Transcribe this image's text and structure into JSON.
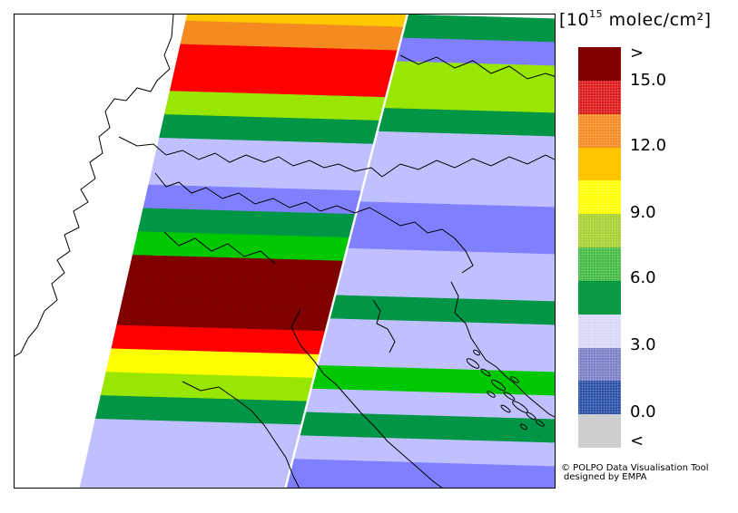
{
  "legend": {
    "title_open": "[10",
    "title_sup": "15",
    "title_close": " molec/cm²]",
    "swatches": [
      {
        "color": "#800000",
        "pattern": "solid"
      },
      {
        "color": "#dd1a1a",
        "pattern": "dots"
      },
      {
        "color": "#f58a20",
        "pattern": "dots"
      },
      {
        "color": "#ffc400",
        "pattern": "solid"
      },
      {
        "color": "#ffff00",
        "pattern": "dots"
      },
      {
        "color": "#a8d030",
        "pattern": "dots"
      },
      {
        "color": "#44bb44",
        "pattern": "dots"
      },
      {
        "color": "#0a9a45",
        "pattern": "solid"
      },
      {
        "color": "#d8d8f6",
        "pattern": "dots"
      },
      {
        "color": "#7b80c6",
        "pattern": "dots"
      },
      {
        "color": "#2a50a8",
        "pattern": "dots"
      },
      {
        "color": "#cfcfcf",
        "pattern": "solid"
      }
    ],
    "labels": [
      ">",
      "15.0",
      "12.0",
      "9.0",
      "6.0",
      "3.0",
      "0.0",
      "<"
    ]
  },
  "map": {
    "colors": {
      "darkred": "#800000",
      "red": "#ff0000",
      "orange": "#f58a20",
      "gold": "#ffc800",
      "yellow": "#ffff00",
      "yellowgreen": "#99e600",
      "green": "#00c800",
      "darkgreen": "#009646",
      "lavender": "#c0c0ff",
      "periwinkle": "#8080ff",
      "boundary": "#000000"
    },
    "strips": [
      {
        "rows": [
          "gold",
          "orange",
          "red",
          "red",
          "yellowgreen",
          "darkgreen",
          "lavender",
          "lavender",
          "periwinkle",
          "darkgreen",
          "green",
          "darkred",
          "darkred",
          "darkred",
          "red",
          "yellow",
          "yellowgreen",
          "darkgreen",
          "lavender",
          "lavender",
          "lavender"
        ]
      },
      {
        "rows": [
          "darkgreen",
          "periwinkle",
          "yellowgreen",
          "yellowgreen",
          "darkgreen",
          "lavender",
          "lavender",
          "lavender",
          "periwinkle",
          "periwinkle",
          "lavender",
          "lavender",
          "darkgreen",
          "lavender",
          "lavender",
          "green",
          "lavender",
          "darkgreen",
          "lavender",
          "periwinkle",
          "periwinkle"
        ]
      }
    ]
  },
  "credit": {
    "line1": "© POLPO Data Visualisation Tool",
    "line2": "designed by EMPA"
  }
}
